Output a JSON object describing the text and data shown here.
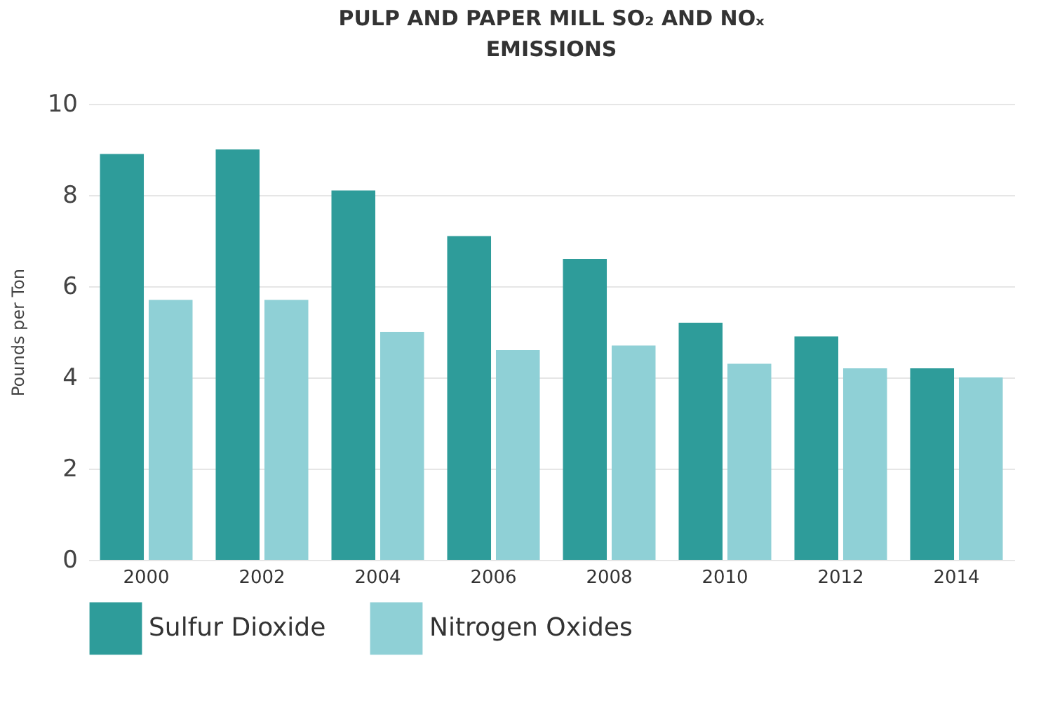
{
  "chart_data": {
    "type": "bar",
    "title": "PULP AND PAPER MILL SO₂ AND NOₓ EMISSIONS",
    "ylabel": "Pounds per Ton",
    "categories": [
      "2000",
      "2002",
      "2004",
      "2006",
      "2008",
      "2010",
      "2012",
      "2014"
    ],
    "series": [
      {
        "name": "Sulfur Dioxide",
        "color": "#2e9c9a",
        "values": [
          8.9,
          9.0,
          8.1,
          7.1,
          6.6,
          5.2,
          4.9,
          4.2
        ]
      },
      {
        "name": "Nitrogen Oxides",
        "color": "#8fd0d6",
        "values": [
          5.7,
          5.7,
          5.0,
          4.6,
          4.7,
          4.3,
          4.2,
          4.0
        ]
      }
    ],
    "ylim": [
      0,
      10
    ],
    "yticks": [
      0,
      2,
      4,
      6,
      8,
      10
    ],
    "grid": "y",
    "legend": "bottom"
  }
}
